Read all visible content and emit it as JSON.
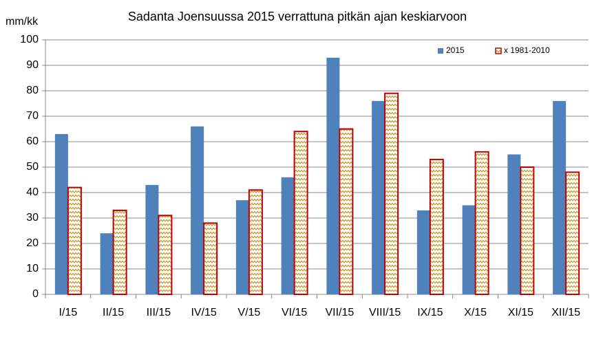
{
  "chart_data": {
    "type": "bar",
    "title": "Sadanta  Joensuussa 2015 verrattuna pitkän ajan keskiarvoon",
    "y_label": "mm/kk",
    "categories": [
      "I/15",
      "II/15",
      "III/15",
      "IV/15",
      "V/15",
      "VI/15",
      "VII/15",
      "VIII/15",
      "IX/15",
      "X/15",
      "XI/15",
      "XII/15"
    ],
    "series": [
      {
        "name": "2015",
        "color": "#4f81bd",
        "values": [
          63,
          24,
          43,
          66,
          37,
          46,
          93,
          76,
          33,
          35,
          55,
          76
        ]
      },
      {
        "name": "x 1981-2010",
        "color": "#c00000",
        "values": [
          42,
          33,
          31,
          28,
          41,
          64,
          65,
          79,
          53,
          56,
          50,
          48
        ]
      }
    ],
    "ylim": [
      0,
      100
    ],
    "yticks": [
      0,
      10,
      20,
      30,
      40,
      50,
      60,
      70,
      80,
      90,
      100
    ],
    "grid": true,
    "legend": "top-right"
  }
}
